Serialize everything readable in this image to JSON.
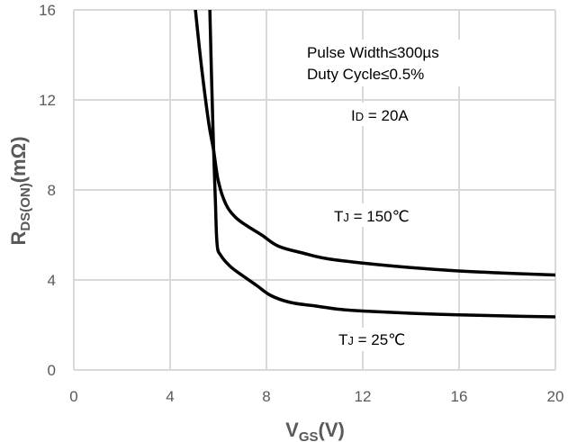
{
  "chart_data": {
    "type": "line",
    "xlabel": {
      "main": "V",
      "sub": "GS",
      "rest": "(V)"
    },
    "ylabel": {
      "main": "R",
      "sub": "DS(ON)",
      "rest": "(mΩ)"
    },
    "xlim": [
      0,
      20
    ],
    "ylim": [
      0,
      16
    ],
    "xticks": [
      "0",
      "4",
      "8",
      "12",
      "16",
      "20"
    ],
    "yticks": [
      "0",
      "4",
      "8",
      "12",
      "16"
    ],
    "grid": true,
    "annotations": {
      "pulse_width": "Pulse Width≤300µs",
      "duty_cycle": "Duty Cycle≤0.5%",
      "id_prefix": "I",
      "id_sub": "D",
      "id_value": " = 20A",
      "tj150_prefix": "T",
      "tj150_sub": "J",
      "tj150_value": " = 150℃",
      "tj25_prefix": "T",
      "tj25_sub": "J",
      "tj25_value": " = 25℃"
    },
    "series": [
      {
        "condition": "TJ = 150℃",
        "color": "#000000",
        "x": [
          5.05,
          5.3,
          5.6,
          5.8,
          6.0,
          6.3,
          6.7,
          7.2,
          7.8,
          8.5,
          9.5,
          10.5,
          12,
          14,
          16,
          18,
          20
        ],
        "y": [
          16,
          13.5,
          11.0,
          9.8,
          8.4,
          7.4,
          6.8,
          6.4,
          6.0,
          5.5,
          5.2,
          4.95,
          4.75,
          4.55,
          4.4,
          4.3,
          4.22
        ]
      },
      {
        "condition": "TJ = 25℃",
        "color": "#000000",
        "x": [
          5.65,
          5.72,
          5.8,
          5.88,
          5.95,
          6.1,
          6.5,
          7.0,
          7.6,
          8.2,
          9.0,
          10,
          11,
          12,
          14,
          16,
          18,
          20
        ],
        "y": [
          16,
          13.0,
          10.0,
          7.5,
          5.6,
          5.1,
          4.6,
          4.2,
          3.75,
          3.3,
          3.0,
          2.85,
          2.7,
          2.62,
          2.52,
          2.45,
          2.4,
          2.36
        ]
      }
    ]
  }
}
